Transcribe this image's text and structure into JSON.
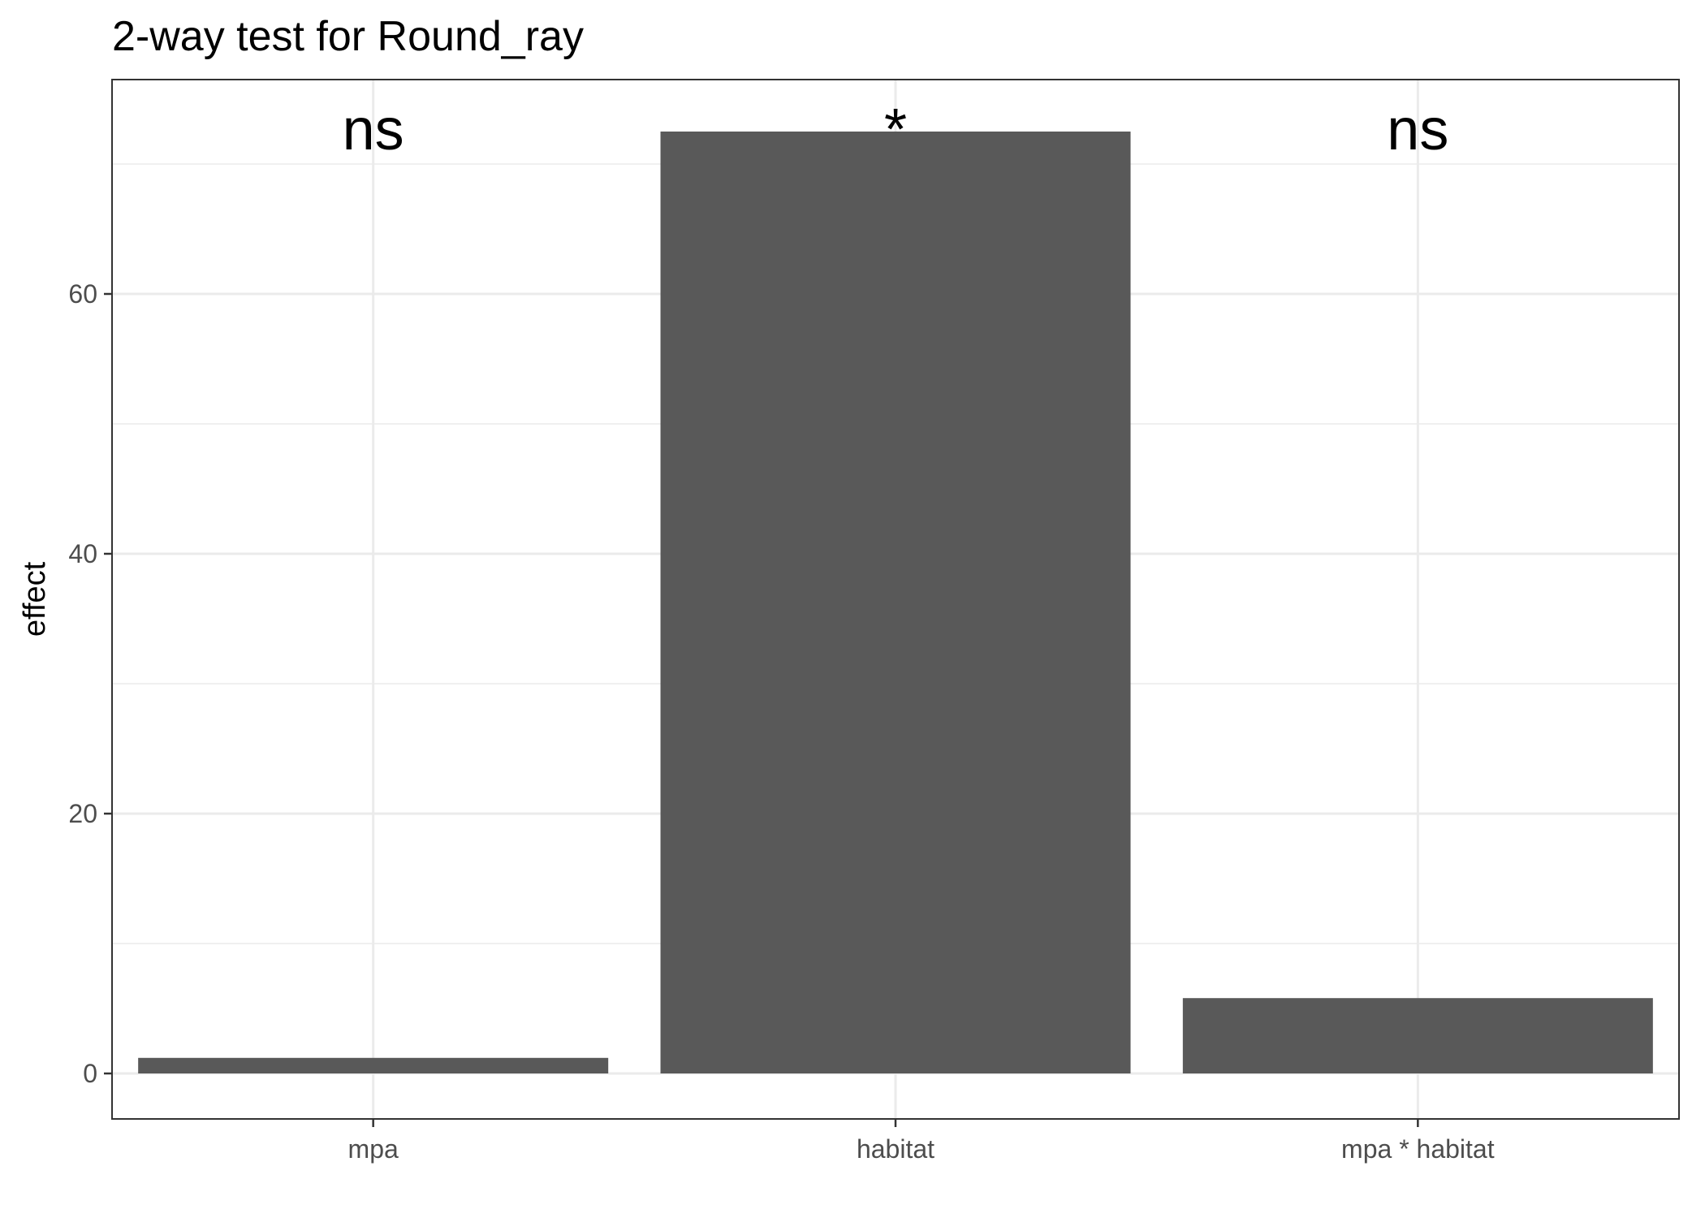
{
  "chart_data": {
    "type": "bar",
    "title": "2-way test for Round_ray",
    "xlabel": "",
    "ylabel": "effect",
    "categories": [
      "mpa",
      "habitat",
      "mpa * habitat"
    ],
    "values": [
      1.2,
      72.5,
      5.8
    ],
    "annotations": [
      "ns",
      "*",
      "ns"
    ],
    "ylim": [
      -3.5,
      76.5
    ],
    "yticks": [
      0,
      20,
      40,
      60
    ],
    "grid": true,
    "bar_color": "#595959",
    "grid_color": "#ebebeb",
    "panel_border_color": "#333333"
  }
}
